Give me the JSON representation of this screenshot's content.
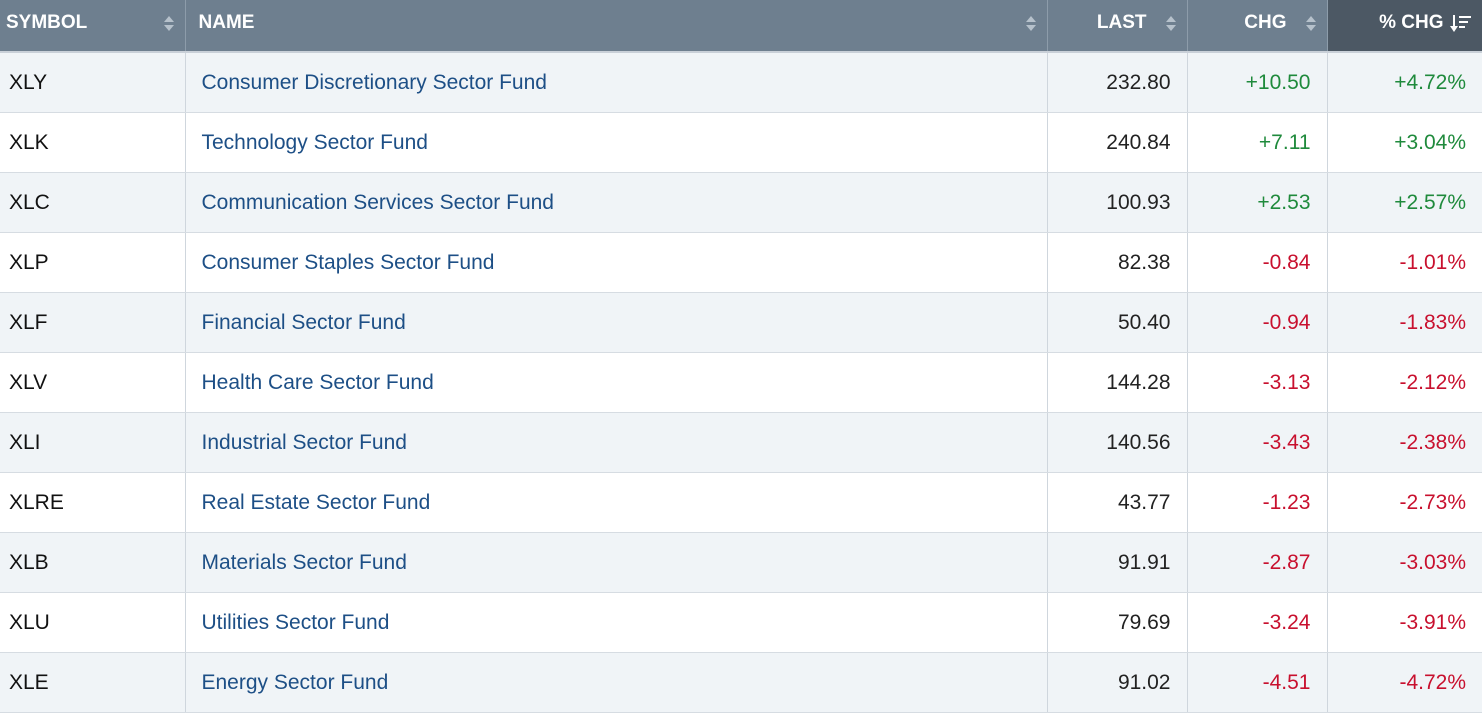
{
  "columns": {
    "symbol": "SYMBOL",
    "name": "NAME",
    "last": "LAST",
    "chg": "CHG",
    "pct_chg": "% CHG"
  },
  "sort": {
    "column": "pct_chg",
    "direction": "descending"
  },
  "colors": {
    "header_bg": "#6e7f8f",
    "header_active_bg": "#4c5864",
    "row_alt_bg": "#f0f4f7",
    "link": "#1d4f86",
    "positive": "#1f8a3c",
    "negative": "#c8102e"
  },
  "rows": [
    {
      "symbol": "XLY",
      "name": "Consumer Discretionary Sector Fund",
      "last": "232.80",
      "chg": "+10.50",
      "pct_chg": "+4.72%",
      "direction": "up"
    },
    {
      "symbol": "XLK",
      "name": "Technology Sector Fund",
      "last": "240.84",
      "chg": "+7.11",
      "pct_chg": "+3.04%",
      "direction": "up"
    },
    {
      "symbol": "XLC",
      "name": "Communication Services Sector Fund",
      "last": "100.93",
      "chg": "+2.53",
      "pct_chg": "+2.57%",
      "direction": "up"
    },
    {
      "symbol": "XLP",
      "name": "Consumer Staples Sector Fund",
      "last": "82.38",
      "chg": "-0.84",
      "pct_chg": "-1.01%",
      "direction": "down"
    },
    {
      "symbol": "XLF",
      "name": "Financial Sector Fund",
      "last": "50.40",
      "chg": "-0.94",
      "pct_chg": "-1.83%",
      "direction": "down"
    },
    {
      "symbol": "XLV",
      "name": "Health Care Sector Fund",
      "last": "144.28",
      "chg": "-3.13",
      "pct_chg": "-2.12%",
      "direction": "down"
    },
    {
      "symbol": "XLI",
      "name": "Industrial Sector Fund",
      "last": "140.56",
      "chg": "-3.43",
      "pct_chg": "-2.38%",
      "direction": "down"
    },
    {
      "symbol": "XLRE",
      "name": "Real Estate Sector Fund",
      "last": "43.77",
      "chg": "-1.23",
      "pct_chg": "-2.73%",
      "direction": "down"
    },
    {
      "symbol": "XLB",
      "name": "Materials Sector Fund",
      "last": "91.91",
      "chg": "-2.87",
      "pct_chg": "-3.03%",
      "direction": "down"
    },
    {
      "symbol": "XLU",
      "name": "Utilities Sector Fund",
      "last": "79.69",
      "chg": "-3.24",
      "pct_chg": "-3.91%",
      "direction": "down"
    },
    {
      "symbol": "XLE",
      "name": "Energy Sector Fund",
      "last": "91.02",
      "chg": "-4.51",
      "pct_chg": "-4.72%",
      "direction": "down"
    }
  ]
}
